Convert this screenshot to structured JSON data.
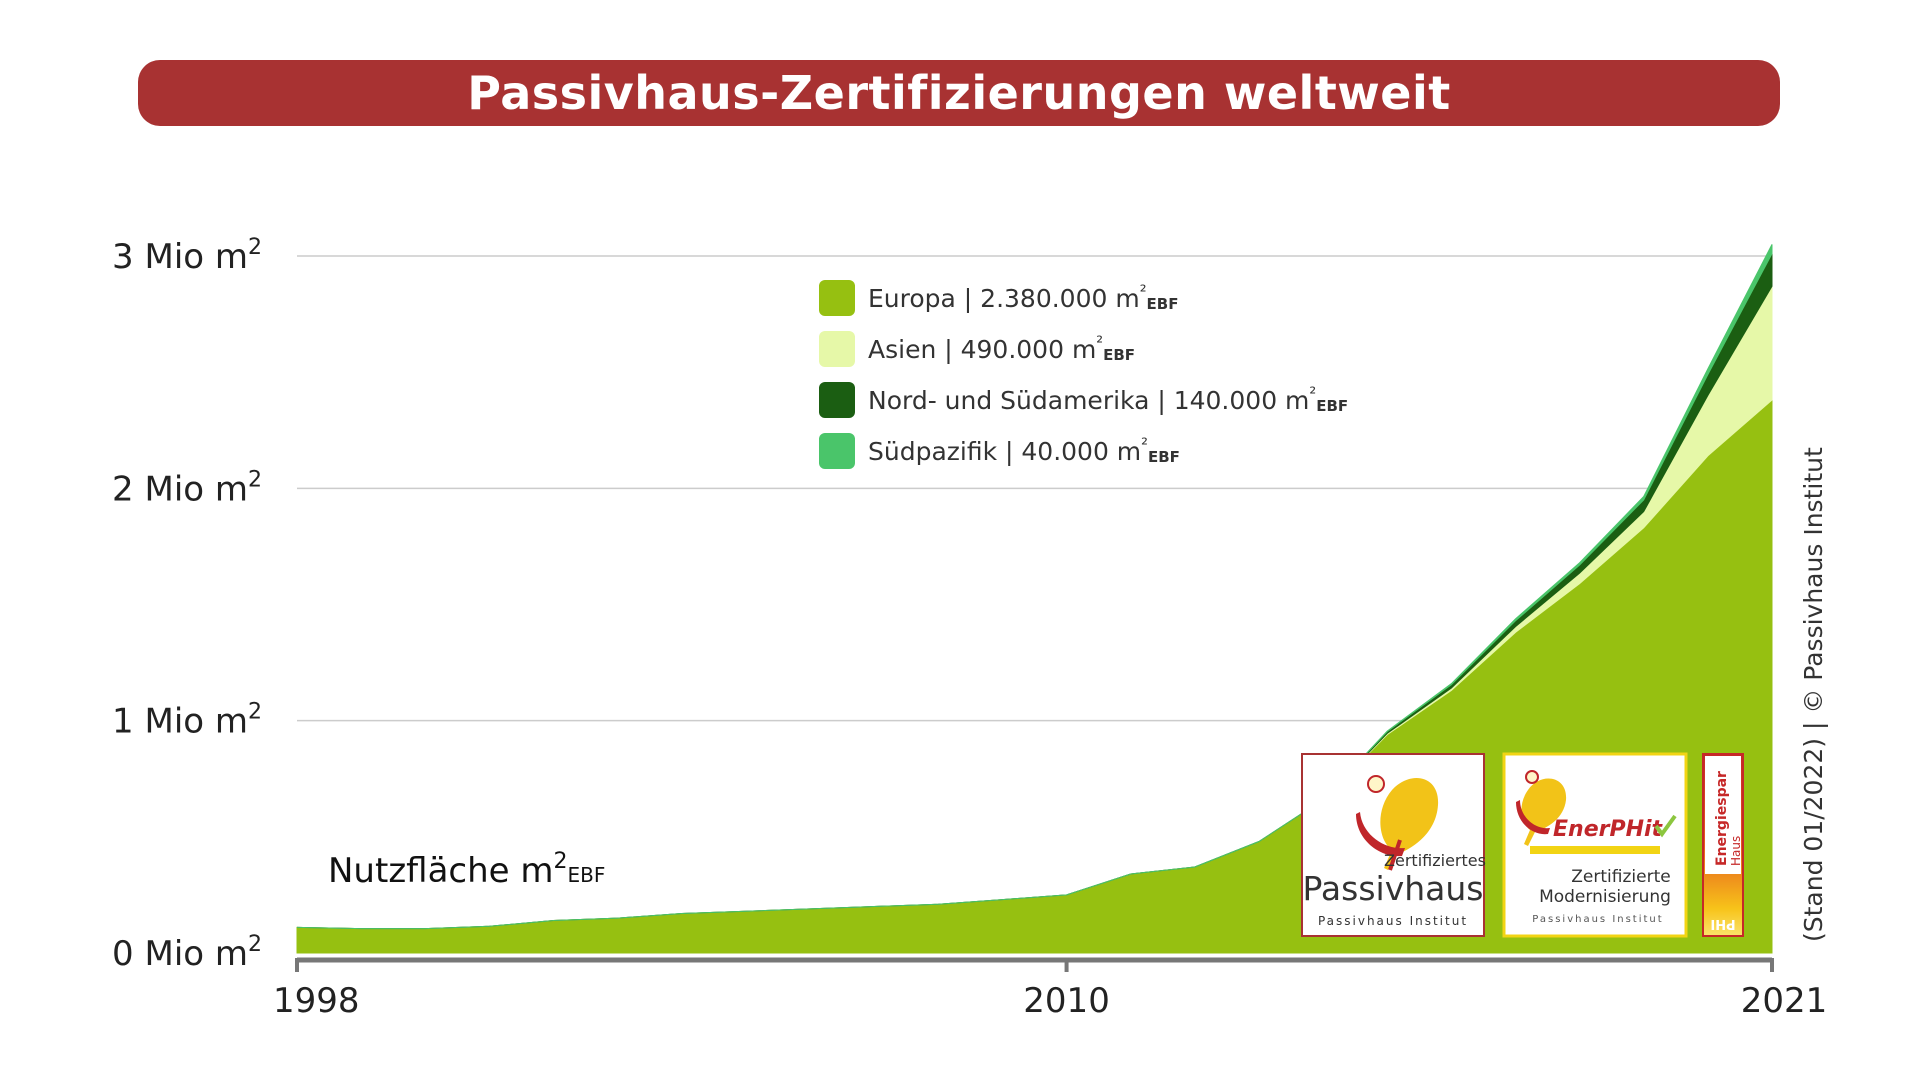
{
  "title": "Passivhaus-Zertifizierungen weltweit",
  "colors": {
    "title_bg": "#a83232",
    "europa": "#96c011",
    "asien": "#e6f8a8",
    "amerika": "#1b5e12",
    "suedpazifik": "#4ac56a"
  },
  "axis": {
    "y_unit_label_main": "Nutzfläche m",
    "y_unit_sup": "2",
    "y_unit_sub": "EBF"
  },
  "credit": "(Stand 01/2022)  |  © Passivhaus Institut",
  "logos": {
    "passivhaus": {
      "line1": "Zertifiziertes",
      "line2": "Passivhaus",
      "line3": "Passivhaus Institut"
    },
    "enerphit": {
      "brand": "EnerPHit",
      "line1": "Zertifizierte",
      "line2": "Modernisierung",
      "line3": "Passivhaus Institut"
    },
    "energiespar": {
      "line1": "Energiespar",
      "line2": "Haus",
      "line3": "PHI"
    }
  },
  "chart_data": {
    "type": "area",
    "stacked": true,
    "title": "Passivhaus-Zertifizierungen weltweit",
    "ylabel": "Nutzfläche m²EBF",
    "ylim": [
      0,
      3000000
    ],
    "yticks": [
      {
        "value": 0,
        "label": "0 Mio m",
        "sup": "2"
      },
      {
        "value": 1000000,
        "label": "1 Mio m",
        "sup": "2"
      },
      {
        "value": 2000000,
        "label": "2 Mio m",
        "sup": "2"
      },
      {
        "value": 3000000,
        "label": "3 Mio m",
        "sup": "2"
      }
    ],
    "xlim": [
      1998,
      2021
    ],
    "xticks": [
      1998,
      2010,
      2021
    ],
    "grid": true,
    "legend_position": "top-center",
    "x": [
      1998,
      1999,
      2000,
      2001,
      2002,
      2003,
      2004,
      2005,
      2006,
      2007,
      2008,
      2009,
      2010,
      2011,
      2012,
      2013,
      2014,
      2015,
      2016,
      2017,
      2018,
      2019,
      2020,
      2021
    ],
    "series": [
      {
        "name": "Europa",
        "legend": "Europa | 2.380.000 m²",
        "legend_main": "Europa | 2.380.000 m",
        "legend_sup": "²",
        "legend_sub": "EBF",
        "values": [
          110000,
          105000,
          105000,
          115000,
          140000,
          150000,
          170000,
          180000,
          190000,
          200000,
          210000,
          230000,
          250000,
          340000,
          370000,
          480000,
          660000,
          940000,
          1130000,
          1380000,
          1590000,
          1830000,
          2140000,
          2380000
        ]
      },
      {
        "name": "Asien",
        "legend": "Asien | 490.000 m²",
        "legend_main": "Asien | 490.000 m",
        "legend_sup": "²",
        "legend_sub": "EBF",
        "values": [
          0,
          0,
          0,
          0,
          0,
          0,
          0,
          0,
          0,
          0,
          0,
          0,
          0,
          0,
          0,
          0,
          0,
          5000,
          10000,
          25000,
          45000,
          70000,
          260000,
          490000
        ]
      },
      {
        "name": "Nord- und Südamerika",
        "legend": "Nord- und Südamerika | 140.000 m²",
        "legend_main": "Nord- und Südamerika | 140.000 m",
        "legend_sup": "²",
        "legend_sub": "EBF",
        "values": [
          0,
          0,
          0,
          0,
          0,
          0,
          0,
          0,
          0,
          0,
          0,
          0,
          0,
          0,
          0,
          0,
          0,
          8000,
          15000,
          25000,
          35000,
          50000,
          90000,
          140000
        ]
      },
      {
        "name": "Südpazifik",
        "legend": "Südpazifik | 40.000 m²",
        "legend_main": "Südpazifik | 40.000 m",
        "legend_sup": "²",
        "legend_sub": "EBF",
        "values": [
          0,
          0,
          0,
          0,
          0,
          0,
          0,
          0,
          0,
          0,
          0,
          0,
          0,
          0,
          0,
          0,
          0,
          2000,
          4000,
          8000,
          10000,
          15000,
          25000,
          40000
        ]
      }
    ]
  }
}
